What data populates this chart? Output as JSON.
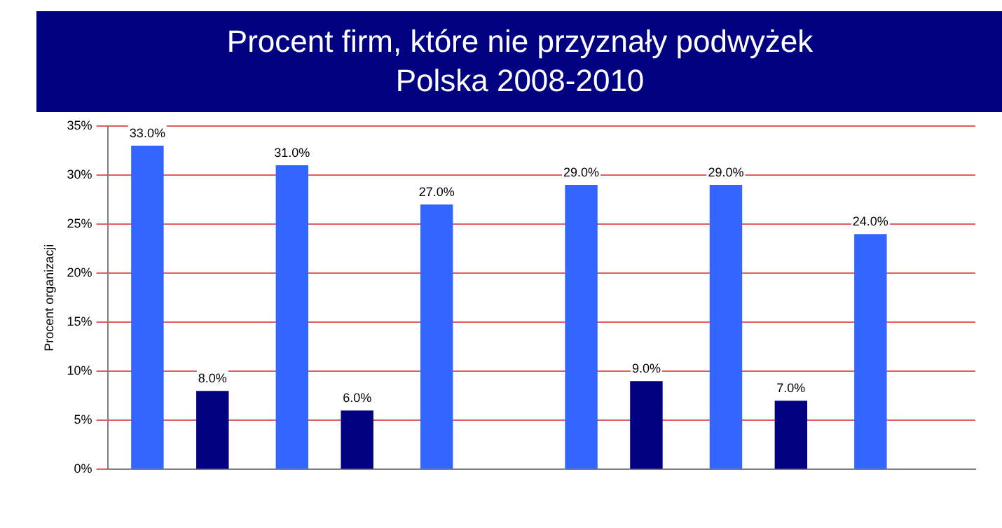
{
  "chart_data": {
    "type": "bar",
    "title": "Procent firm, które nie przyznały podwyżek",
    "subtitle": "Polska 2008-2010",
    "ylabel": "Procent organizacji",
    "categories": [
      null,
      null,
      null,
      null,
      null,
      null
    ],
    "series": [
      {
        "color": "#3366ff",
        "values": [
          33,
          31,
          27,
          29,
          29,
          24
        ],
        "value_labels": [
          "33.0%",
          "31.0%",
          "27.0%",
          "29.0%",
          "29.0%",
          "24.0%"
        ]
      },
      {
        "color": "#000080",
        "values": [
          8,
          6,
          null,
          9,
          7,
          null
        ],
        "value_labels": [
          "8.0%",
          "6.0%",
          null,
          "9.0%",
          "7.0%",
          null
        ]
      }
    ],
    "ylim": [
      0,
      35
    ],
    "yticks": [
      {
        "value": 0,
        "label": "0%"
      },
      {
        "value": 5,
        "label": "5%"
      },
      {
        "value": 10,
        "label": "10%"
      },
      {
        "value": 15,
        "label": "15%"
      },
      {
        "value": 20,
        "label": "20%"
      },
      {
        "value": 25,
        "label": "25%"
      },
      {
        "value": 30,
        "label": "30%"
      },
      {
        "value": 35,
        "label": "35%"
      }
    ],
    "grid": "y"
  }
}
